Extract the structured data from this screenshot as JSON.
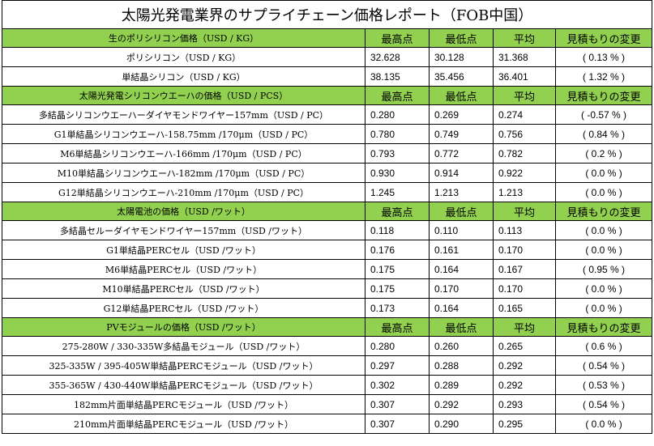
{
  "title": "太陽光発電業界のサプライチェーン価格レポート（FOB中国）",
  "sections": [
    {
      "name": "生のポリシリコン価格（USD / KG）",
      "headers": [
        "最高点",
        "最低点",
        "平均",
        "見積もりの変更"
      ],
      "rows": [
        {
          "label": "ポリシリコン（USD / KG）",
          "high": "32.628",
          "low": "30.128",
          "avg": "31.368",
          "change": "( 0.13 % )"
        },
        {
          "label": "単結晶シリコン（USD / KG）",
          "high": "38.135",
          "low": "35.456",
          "avg": "36.401",
          "change": "( 1.32 % )"
        }
      ]
    },
    {
      "name": "太陽光発電シリコンウエーハの価格（USD / PCS）",
      "headers": [
        "最高点",
        "最低点",
        "平均",
        "見積もりの変更"
      ],
      "rows": [
        {
          "label": "多結晶シリコンウエーハーダイヤモンドワイヤー157mm（USD / PC）",
          "high": "0.280",
          "low": "0.269",
          "avg": "0.274",
          "change": "( -0.57 % )"
        },
        {
          "label": "G1単結晶シリコンウエーハ-158.75mm /170μm（USD / PC）",
          "high": "0.780",
          "low": "0.749",
          "avg": "0.756",
          "change": "( 0.84 % )"
        },
        {
          "label": "M6単結晶シリコンウエーハ-166mm /170μm（USD / PC）",
          "high": "0.793",
          "low": "0.772",
          "avg": "0.782",
          "change": "( 0.2 % )"
        },
        {
          "label": "M10単結晶シリコンウエーハ-182mm /170μm（USD / PC）",
          "high": "0.930",
          "low": "0.914",
          "avg": "0.922",
          "change": "( 0.0 % )"
        },
        {
          "label": "G12単結晶シリコンウエーハ-210mm /170μm（USD / PC）",
          "high": "1.245",
          "low": "1.213",
          "avg": "1.213",
          "change": "( 0.0 % )"
        }
      ]
    },
    {
      "name": "太陽電池の価格（USD /ワット）",
      "headers": [
        "最高点",
        "最低点",
        "平均",
        "見積もりの変更"
      ],
      "rows": [
        {
          "label": "多結晶セルーダイヤモンドワイヤー157mm（USD /ワット）",
          "high": "0.118",
          "low": "0.110",
          "avg": "0.113",
          "change": "( 0.0 % )"
        },
        {
          "label": "G1単結晶PERCセル（USD /ワット）",
          "high": "0.176",
          "low": "0.161",
          "avg": "0.170",
          "change": "( 0.0 % )"
        },
        {
          "label": "M6単結晶PERCセル（USD /ワット）",
          "high": "0.175",
          "low": "0.164",
          "avg": "0.167",
          "change": "( 0.95 % )"
        },
        {
          "label": "M10単結晶PERCセル（USD /ワット）",
          "high": "0.175",
          "low": "0.170",
          "avg": "0.170",
          "change": "( 0.0 % )"
        },
        {
          "label": "G12単結晶PERCセル（USD /ワット）",
          "high": "0.173",
          "low": "0.164",
          "avg": "0.165",
          "change": "( 0.0 % )"
        }
      ]
    },
    {
      "name": "PVモジュールの価格（USD /ワット）",
      "headers": [
        "最高点",
        "最低点",
        "平均",
        "見積もりの変更"
      ],
      "rows": [
        {
          "label": "275-280W / 330-335W多結晶モジュール（USD /ワット）",
          "high": "0.280",
          "low": "0.260",
          "avg": "0.265",
          "change": "( 0.6 % )"
        },
        {
          "label": "325-335W / 395-405W単結晶PERCモジュール（USD /ワット）",
          "high": "0.297",
          "low": "0.288",
          "avg": "0.292",
          "change": "( 0.54 % )"
        },
        {
          "label": "355-365W / 430-440W単結晶PERCモジュール（USD /ワット）",
          "high": "0.302",
          "low": "0.289",
          "avg": "0.292",
          "change": "( 0.53 % )"
        },
        {
          "label": "182mm片面単結晶PERCモジュール（USD /ワット）",
          "high": "0.307",
          "low": "0.292",
          "avg": "0.293",
          "change": "( 0.54 % )"
        },
        {
          "label": "210mm片面単結晶PERCモジュール（USD /ワット）",
          "high": "0.307",
          "low": "0.290",
          "avg": "0.295",
          "change": "( 0.0 % )"
        }
      ]
    }
  ]
}
